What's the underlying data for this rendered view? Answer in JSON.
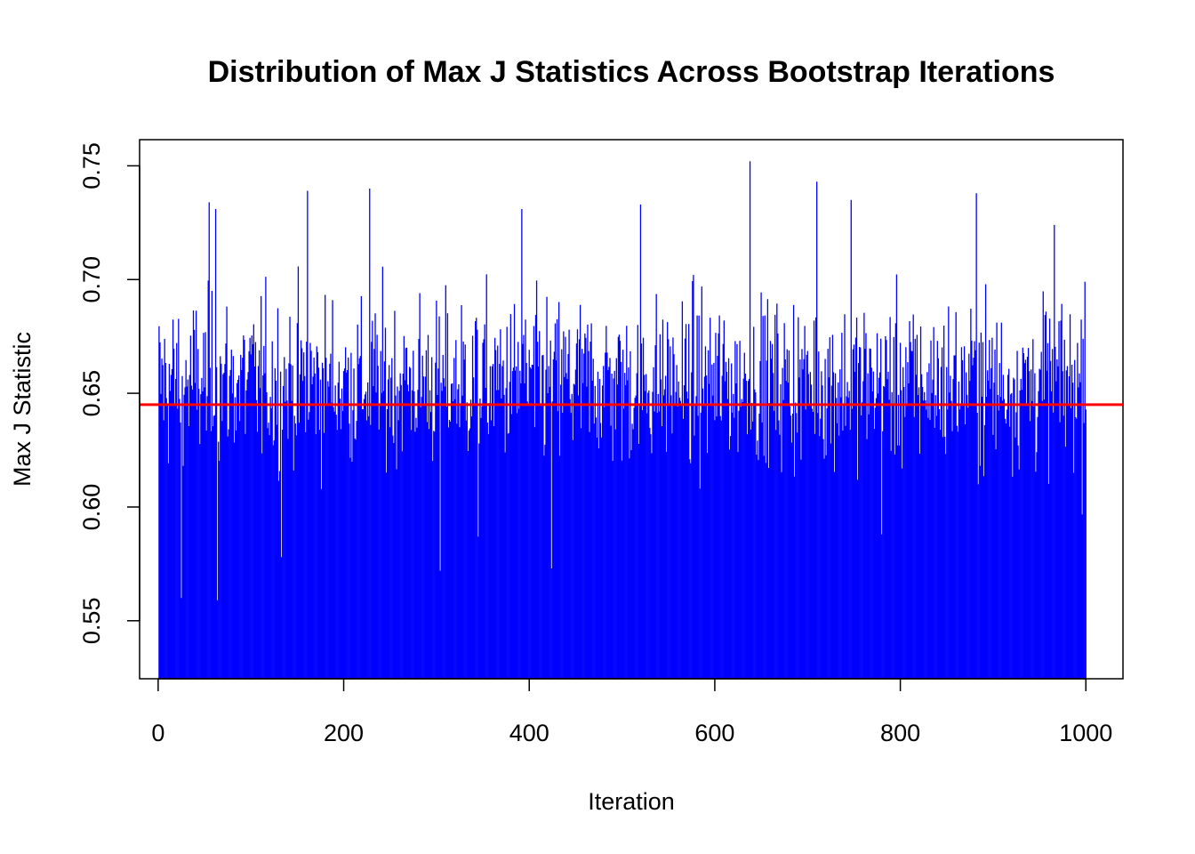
{
  "chart_data": {
    "type": "bar",
    "title": "Distribution of Max J Statistics Across Bootstrap Iterations",
    "xlabel": "Iteration",
    "ylabel": "Max J Statistic",
    "xlim": [
      -20,
      1040
    ],
    "ylim": [
      0.5245,
      0.7615
    ],
    "x_ticks": [
      0,
      200,
      400,
      600,
      800,
      1000
    ],
    "x_tick_labels": [
      "0",
      "200",
      "400",
      "600",
      "800",
      "1000"
    ],
    "y_ticks": [
      0.55,
      0.6,
      0.65,
      0.7,
      0.75
    ],
    "y_tick_labels": [
      "0.55",
      "0.60",
      "0.65",
      "0.70",
      "0.75"
    ],
    "bar_baseline": 0.5245,
    "n_iterations": 1000,
    "bar_color": "#0000ff",
    "reference_line": {
      "y": 0.645,
      "color": "#ff0000"
    },
    "values_sample_1_to_1000_by_index_peaks": [
      {
        "x": 25,
        "y": 0.56
      },
      {
        "x": 55,
        "y": 0.734
      },
      {
        "x": 62,
        "y": 0.731
      },
      {
        "x": 64,
        "y": 0.559
      },
      {
        "x": 133,
        "y": 0.578
      },
      {
        "x": 161,
        "y": 0.739
      },
      {
        "x": 228,
        "y": 0.74
      },
      {
        "x": 304,
        "y": 0.572
      },
      {
        "x": 345,
        "y": 0.587
      },
      {
        "x": 392,
        "y": 0.731
      },
      {
        "x": 424,
        "y": 0.573
      },
      {
        "x": 520,
        "y": 0.733
      },
      {
        "x": 638,
        "y": 0.752
      },
      {
        "x": 710,
        "y": 0.743
      },
      {
        "x": 747,
        "y": 0.735
      },
      {
        "x": 780,
        "y": 0.588
      },
      {
        "x": 882,
        "y": 0.738
      },
      {
        "x": 966,
        "y": 0.724
      },
      {
        "x": 999,
        "y": 0.699
      }
    ]
  }
}
